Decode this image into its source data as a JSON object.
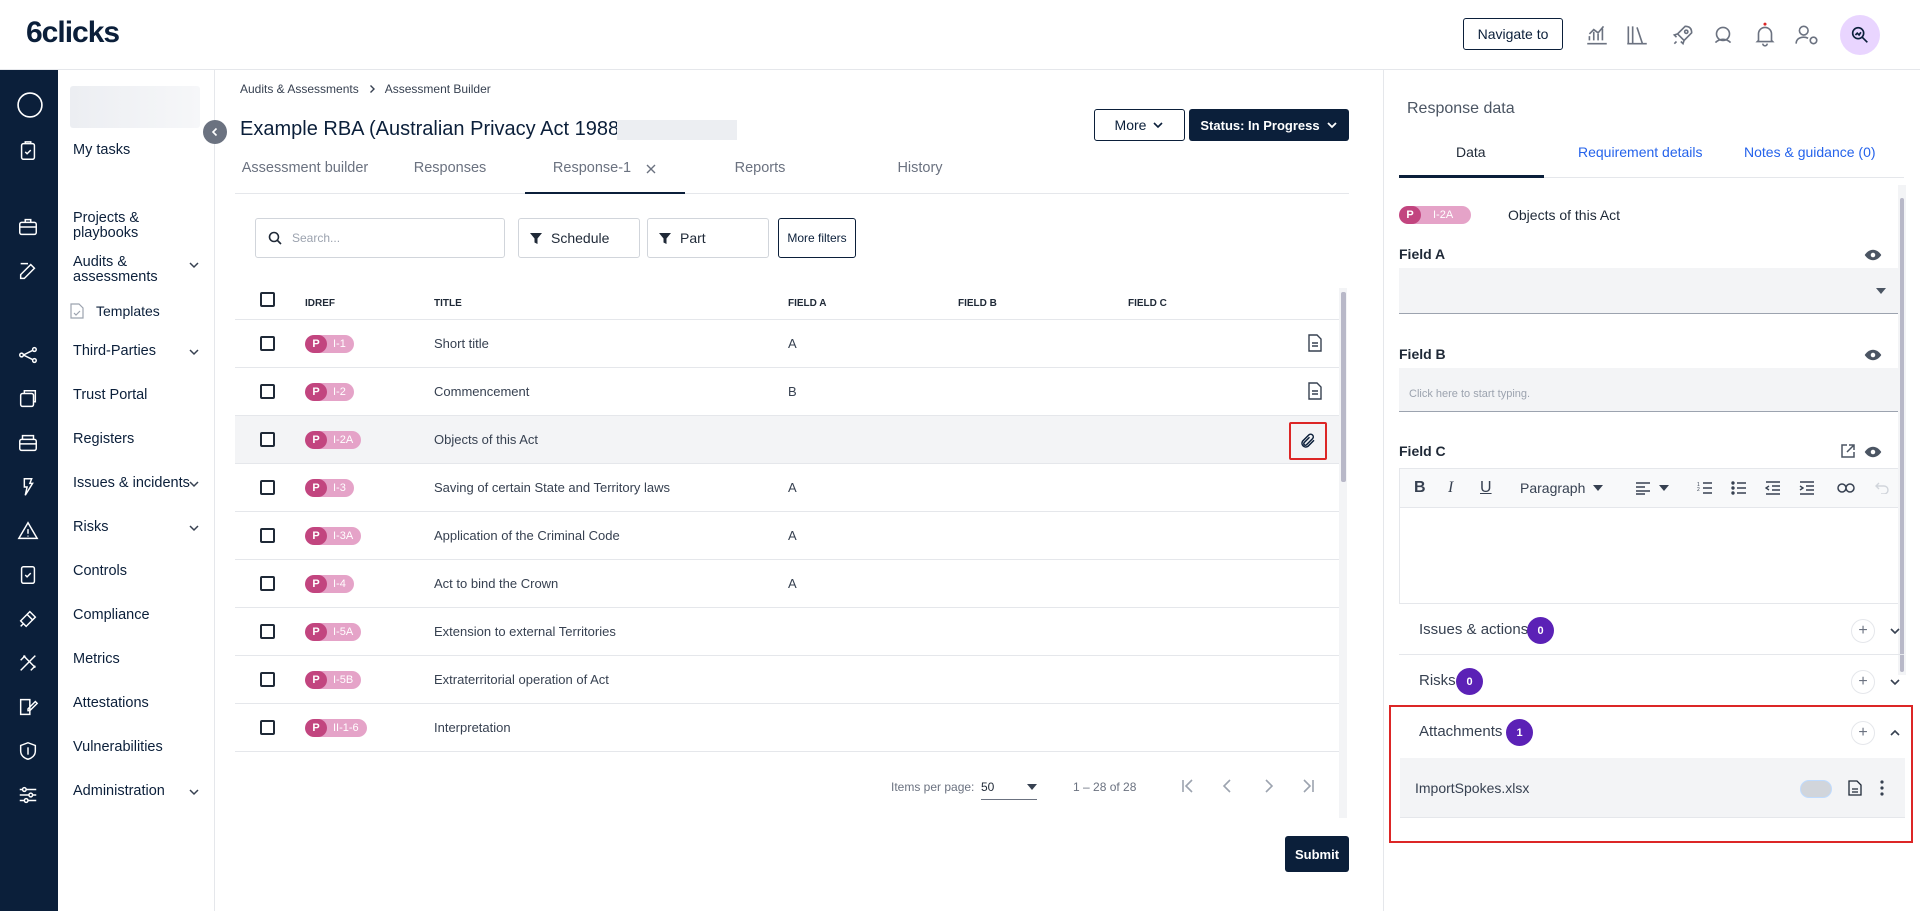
{
  "app": {
    "logo": "6clicks",
    "navigate_label": "Navigate to"
  },
  "sidebar": {
    "my_tasks": "My tasks",
    "items": [
      {
        "label": "Projects & playbooks"
      },
      {
        "label": "Audits & assessments"
      },
      {
        "label": "Templates"
      },
      {
        "label": "Third-Parties"
      },
      {
        "label": "Trust Portal"
      },
      {
        "label": "Registers"
      },
      {
        "label": "Issues & incidents"
      },
      {
        "label": "Risks"
      },
      {
        "label": "Controls"
      },
      {
        "label": "Compliance"
      },
      {
        "label": "Metrics"
      },
      {
        "label": "Attestations"
      },
      {
        "label": "Vulnerabilities"
      },
      {
        "label": "Administration"
      }
    ]
  },
  "breadcrumb": {
    "root": "Audits & Assessments",
    "current": "Assessment Builder"
  },
  "page": {
    "title": "Example RBA (Australian Privacy Act 1988)",
    "more_label": "More",
    "status_label": "Status: In Progress",
    "submit_label": "Submit"
  },
  "tabs": [
    {
      "label": "Assessment builder"
    },
    {
      "label": "Responses"
    },
    {
      "label": "Response-1"
    },
    {
      "label": "Reports"
    },
    {
      "label": "History"
    }
  ],
  "filters": {
    "search_placeholder": "Search...",
    "schedule": "Schedule",
    "part": "Part",
    "more_filters": "More filters"
  },
  "table": {
    "columns": {
      "idref": "IDREF",
      "title": "TITLE",
      "field_a": "FIELD A",
      "field_b": "FIELD B",
      "field_c": "FIELD C"
    },
    "rows": [
      {
        "p": "P",
        "id": "I-1",
        "title": "Short title",
        "field_a": "A",
        "icon": "document-icon"
      },
      {
        "p": "P",
        "id": "I-2",
        "title": "Commencement",
        "field_a": "B",
        "icon": "document-icon"
      },
      {
        "p": "P",
        "id": "I-2A",
        "title": "Objects of this Act",
        "field_a": "",
        "icon": "paperclip-icon"
      },
      {
        "p": "P",
        "id": "I-3",
        "title": "Saving of certain State and Territory laws",
        "field_a": "A"
      },
      {
        "p": "P",
        "id": "I-3A",
        "title": "Application of the Criminal Code",
        "field_a": "A"
      },
      {
        "p": "P",
        "id": "I-4",
        "title": "Act to bind the Crown",
        "field_a": "A"
      },
      {
        "p": "P",
        "id": "I-5A",
        "title": "Extension to external Territories",
        "field_a": ""
      },
      {
        "p": "P",
        "id": "I-5B",
        "title": "Extraterritorial operation of Act",
        "field_a": ""
      },
      {
        "p": "P",
        "id": "II-1-6",
        "title": "Interpretation",
        "field_a": ""
      }
    ]
  },
  "pagination": {
    "items_per_page_label": "Items per page:",
    "items_per_page": "50",
    "range": "1 – 28 of 28"
  },
  "right_panel": {
    "title": "Response data",
    "tabs": [
      {
        "label": "Data"
      },
      {
        "label": "Requirement details"
      },
      {
        "label": "Notes & guidance (0)"
      }
    ],
    "item": {
      "p": "P",
      "id": "I-2A",
      "title": "Objects of this Act"
    },
    "field_a": {
      "label": "Field A"
    },
    "field_b": {
      "label": "Field B",
      "placeholder": "Click here to start typing."
    },
    "field_c": {
      "label": "Field C",
      "paragraph": "Paragraph"
    },
    "sections": [
      {
        "label": "Issues & actions",
        "count": "0"
      },
      {
        "label": "Risks",
        "count": "0"
      },
      {
        "label": "Attachments",
        "count": "1"
      }
    ],
    "attachment": {
      "file_name": "ImportSpokes.xlsx"
    }
  },
  "colors": {
    "navy": "#0b1f3a",
    "badge_pink": "#c2457f",
    "count_purple": "#5b21b6",
    "highlight_red": "#dc2626"
  }
}
